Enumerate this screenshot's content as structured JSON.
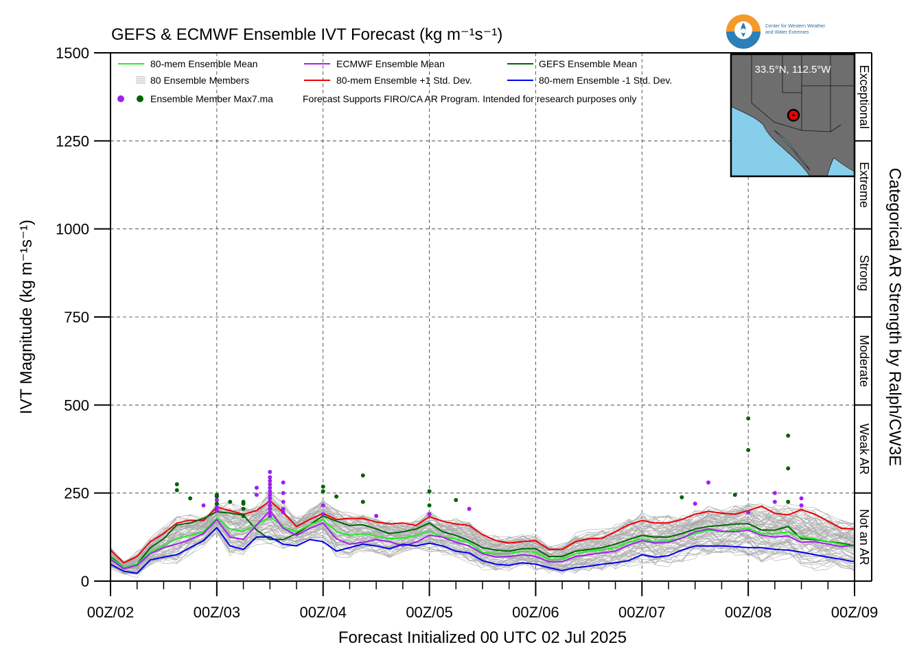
{
  "chart_data": {
    "type": "line",
    "title": "GEFS & ECMWF Ensemble IVT Forecast (kg m⁻¹s⁻¹)",
    "xlabel": "Forecast Initialized 00 UTC 02 Jul 2025",
    "ylabel": "IVT Magnitude (kg m⁻¹s⁻¹)",
    "right_label": "Categorical AR Strength by Ralph/CW3E",
    "ylim": [
      0,
      1500
    ],
    "xlim": [
      0,
      168
    ],
    "yticks": [
      0,
      250,
      500,
      750,
      1000,
      1250,
      1500
    ],
    "xtick_hours": [
      0,
      24,
      48,
      72,
      96,
      120,
      144,
      168
    ],
    "xtick_labels": [
      "00Z/02",
      "00Z/03",
      "00Z/04",
      "00Z/05",
      "00Z/06",
      "00Z/07",
      "00Z/08",
      "00Z/09"
    ],
    "grid": true,
    "categories_bands": [
      {
        "label": "Not an AR",
        "from": 0,
        "to": 250
      },
      {
        "label": "Weak AR",
        "from": 250,
        "to": 500
      },
      {
        "label": "Moderate",
        "from": 500,
        "to": 750
      },
      {
        "label": "Strong",
        "from": 750,
        "to": 1000
      },
      {
        "label": "Extreme",
        "from": 1000,
        "to": 1250
      },
      {
        "label": "Exceptional",
        "from": 1250,
        "to": 1500
      }
    ],
    "legend": {
      "placement": "top-left",
      "entries": [
        {
          "label": "80-mem Ensemble Mean",
          "color": "#22ee22"
        },
        {
          "label": "ECMWF Ensemble Mean",
          "color": "#a020f0"
        },
        {
          "label": "GEFS Ensemble Mean",
          "color": "#006400"
        },
        {
          "label": "80 Ensemble Members",
          "color": "#aaaaaa"
        },
        {
          "label": "80-mem Ensemble +1 Std. Dev.",
          "color": "#ee0000"
        },
        {
          "label": "80-mem Ensemble -1 Std. Dev.",
          "color": "#0000ee"
        },
        {
          "label": "Ensemble Member Max7.ma",
          "colors": [
            "#a020f0",
            "#006400"
          ]
        }
      ],
      "note": "Forecast Supports FIRO/CA AR Program. Intended for research purposes only"
    },
    "inset": {
      "label": "33.5°N, 112.5°W"
    },
    "series": [
      {
        "name": "80-mem Ensemble +1 Std. Dev.",
        "color": "#ee0000",
        "x": [
          0,
          3,
          6,
          9,
          12,
          15,
          18,
          21,
          24,
          27,
          30,
          33,
          36,
          39,
          42,
          45,
          48,
          51,
          54,
          57,
          60,
          63,
          66,
          69,
          72,
          75,
          78,
          81,
          84,
          87,
          90,
          93,
          96,
          99,
          102,
          105,
          108,
          111,
          114,
          117,
          120,
          123,
          126,
          129,
          132,
          135,
          138,
          141,
          144,
          147,
          150,
          153,
          156,
          159,
          162,
          165,
          168
        ],
        "y": [
          88,
          52,
          70,
          112,
          135,
          165,
          173,
          172,
          210,
          200,
          190,
          200,
          228,
          195,
          155,
          175,
          192,
          175,
          178,
          178,
          168,
          162,
          165,
          158,
          183,
          170,
          162,
          158,
          132,
          115,
          108,
          112,
          115,
          90,
          90,
          112,
          120,
          122,
          140,
          160,
          172,
          165,
          165,
          175,
          190,
          198,
          193,
          190,
          200,
          213,
          192,
          188,
          203,
          190,
          170,
          150,
          148
        ]
      },
      {
        "name": "GEFS Ensemble Mean",
        "color": "#006400",
        "x": [
          0,
          3,
          6,
          9,
          12,
          15,
          18,
          21,
          24,
          27,
          30,
          33,
          36,
          39,
          42,
          45,
          48,
          51,
          54,
          57,
          60,
          63,
          66,
          69,
          72,
          75,
          78,
          81,
          84,
          87,
          90,
          93,
          96,
          99,
          102,
          105,
          108,
          111,
          114,
          117,
          120,
          123,
          126,
          129,
          132,
          135,
          138,
          141,
          144,
          147,
          150,
          153,
          156,
          159,
          162,
          165,
          168
        ],
        "y": [
          70,
          38,
          48,
          95,
          120,
          160,
          165,
          178,
          197,
          193,
          187,
          145,
          118,
          118,
          135,
          160,
          185,
          170,
          158,
          160,
          148,
          135,
          140,
          148,
          165,
          140,
          130,
          115,
          95,
          88,
          85,
          92,
          92,
          70,
          70,
          85,
          90,
          95,
          105,
          118,
          130,
          125,
          125,
          135,
          148,
          155,
          158,
          162,
          163,
          145,
          145,
          155,
          120,
          118,
          112,
          108,
          100
        ]
      },
      {
        "name": "80-mem Ensemble Mean",
        "color": "#22ee22",
        "x": [
          0,
          3,
          6,
          9,
          12,
          15,
          18,
          21,
          24,
          27,
          30,
          33,
          36,
          39,
          42,
          45,
          48,
          51,
          54,
          57,
          60,
          63,
          66,
          69,
          72,
          75,
          78,
          81,
          84,
          87,
          90,
          93,
          96,
          99,
          102,
          105,
          108,
          111,
          114,
          117,
          120,
          123,
          126,
          129,
          132,
          135,
          138,
          141,
          144,
          147,
          150,
          153,
          156,
          159,
          162,
          165,
          168
        ],
        "y": [
          66,
          38,
          48,
          82,
          100,
          120,
          130,
          140,
          180,
          148,
          142,
          160,
          182,
          155,
          140,
          160,
          175,
          140,
          130,
          135,
          128,
          120,
          122,
          130,
          142,
          125,
          120,
          108,
          82,
          78,
          78,
          85,
          82,
          62,
          62,
          78,
          85,
          88,
          95,
          110,
          120,
          112,
          115,
          122,
          135,
          145,
          140,
          145,
          150,
          135,
          135,
          140,
          125,
          120,
          112,
          105,
          98
        ]
      },
      {
        "name": "ECMWF Ensemble Mean",
        "color": "#a020f0",
        "x": [
          0,
          3,
          6,
          9,
          12,
          15,
          18,
          21,
          24,
          27,
          30,
          33,
          36,
          39,
          42,
          45,
          48,
          51,
          54,
          57,
          60,
          63,
          66,
          69,
          72,
          75,
          78,
          81,
          84,
          87,
          90,
          93,
          96,
          99,
          102,
          105,
          108,
          111,
          114,
          117,
          120,
          123,
          126,
          129,
          132,
          135,
          138,
          141,
          144,
          147,
          150,
          153,
          156,
          159,
          162,
          165,
          168
        ],
        "y": [
          62,
          35,
          45,
          78,
          95,
          105,
          118,
          135,
          175,
          125,
          118,
          160,
          200,
          150,
          130,
          150,
          165,
          120,
          105,
          110,
          118,
          112,
          100,
          110,
          130,
          125,
          110,
          100,
          78,
          68,
          70,
          75,
          70,
          55,
          55,
          70,
          75,
          80,
          85,
          102,
          115,
          108,
          110,
          122,
          140,
          148,
          142,
          140,
          145,
          130,
          125,
          128,
          110,
          112,
          105,
          98,
          102
        ]
      },
      {
        "name": "80-mem Ensemble -1 Std. Dev.",
        "color": "#0000ee",
        "x": [
          0,
          3,
          6,
          9,
          12,
          15,
          18,
          21,
          24,
          27,
          30,
          33,
          36,
          39,
          42,
          45,
          48,
          51,
          54,
          57,
          60,
          63,
          66,
          69,
          72,
          75,
          78,
          81,
          84,
          87,
          90,
          93,
          96,
          99,
          102,
          105,
          108,
          111,
          114,
          117,
          120,
          123,
          126,
          129,
          132,
          135,
          138,
          141,
          144,
          147,
          150,
          153,
          156,
          159,
          162,
          165,
          168
        ],
        "y": [
          48,
          28,
          22,
          60,
          68,
          75,
          95,
          115,
          152,
          100,
          90,
          125,
          125,
          105,
          100,
          118,
          112,
          85,
          95,
          105,
          100,
          92,
          105,
          100,
          108,
          100,
          85,
          80,
          58,
          48,
          45,
          52,
          48,
          38,
          30,
          38,
          42,
          48,
          52,
          58,
          75,
          68,
          72,
          88,
          100,
          100,
          100,
          98,
          95,
          95,
          90,
          88,
          82,
          75,
          68,
          62,
          55
        ]
      }
    ],
    "max_points": {
      "ecmwf_color": "#a020f0",
      "gefs_color": "#006400",
      "ecmwf": [
        [
          21,
          215
        ],
        [
          24,
          240
        ],
        [
          24,
          230
        ],
        [
          24,
          220
        ],
        [
          24,
          210
        ],
        [
          24,
          200
        ],
        [
          33,
          265
        ],
        [
          33,
          245
        ],
        [
          36,
          310
        ],
        [
          36,
          295
        ],
        [
          36,
          285
        ],
        [
          36,
          275
        ],
        [
          36,
          265
        ],
        [
          36,
          255
        ],
        [
          36,
          245
        ],
        [
          36,
          235
        ],
        [
          36,
          225
        ],
        [
          36,
          215
        ],
        [
          36,
          205
        ],
        [
          36,
          195
        ],
        [
          36,
          185
        ],
        [
          39,
          280
        ],
        [
          39,
          250
        ],
        [
          39,
          225
        ],
        [
          39,
          205
        ],
        [
          39,
          195
        ],
        [
          48,
          215
        ],
        [
          48,
          190
        ],
        [
          60,
          185
        ],
        [
          72,
          190
        ],
        [
          81,
          205
        ],
        [
          132,
          220
        ],
        [
          135,
          280
        ],
        [
          144,
          195
        ],
        [
          150,
          250
        ],
        [
          150,
          225
        ],
        [
          156,
          235
        ],
        [
          156,
          215
        ]
      ],
      "gefs": [
        [
          15,
          275
        ],
        [
          15,
          258
        ],
        [
          18,
          235
        ],
        [
          24,
          245
        ],
        [
          24,
          240
        ],
        [
          24,
          220
        ],
        [
          27,
          225
        ],
        [
          30,
          225
        ],
        [
          30,
          220
        ],
        [
          30,
          205
        ],
        [
          30,
          185
        ],
        [
          48,
          268
        ],
        [
          48,
          255
        ],
        [
          51,
          240
        ],
        [
          57,
          300
        ],
        [
          57,
          225
        ],
        [
          72,
          255
        ],
        [
          72,
          215
        ],
        [
          78,
          230
        ],
        [
          129,
          238
        ],
        [
          141,
          245
        ],
        [
          144,
          462
        ],
        [
          144,
          372
        ],
        [
          153,
          413
        ],
        [
          153,
          320
        ],
        [
          153,
          225
        ]
      ]
    }
  }
}
